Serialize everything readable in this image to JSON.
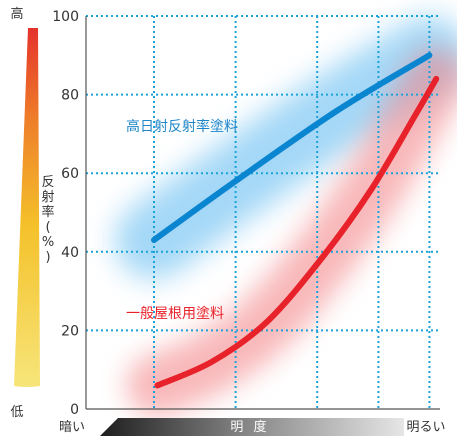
{
  "chart_data": {
    "type": "line",
    "title": "",
    "xlabel": "明 度",
    "ylabel": "反射率(%)",
    "x_left_label": "暗い",
    "x_right_label": "明るい",
    "ylim": [
      0,
      100
    ],
    "xlim": [
      0,
      10
    ],
    "yticks": [
      "0",
      "20",
      "40",
      "60",
      "80",
      "100"
    ],
    "grid": true,
    "left_arrow": {
      "top_label": "高",
      "bottom_label": "低"
    },
    "series": [
      {
        "name": "高日射反射率塗料",
        "color": "#0a85d0",
        "band_color": "#5ab8f0",
        "points": [
          [
            2.0,
            43
          ],
          [
            4.4,
            58
          ],
          [
            7.4,
            76
          ],
          [
            10.1,
            90
          ]
        ]
      },
      {
        "name": "一般屋根用塗料",
        "color": "#e8222a",
        "band_color": "#f37f82",
        "points": [
          [
            2.1,
            6
          ],
          [
            3.7,
            12
          ],
          [
            5.3,
            22
          ],
          [
            6.9,
            38
          ],
          [
            8.4,
            56
          ],
          [
            9.7,
            75
          ],
          [
            10.3,
            84
          ]
        ]
      }
    ]
  }
}
